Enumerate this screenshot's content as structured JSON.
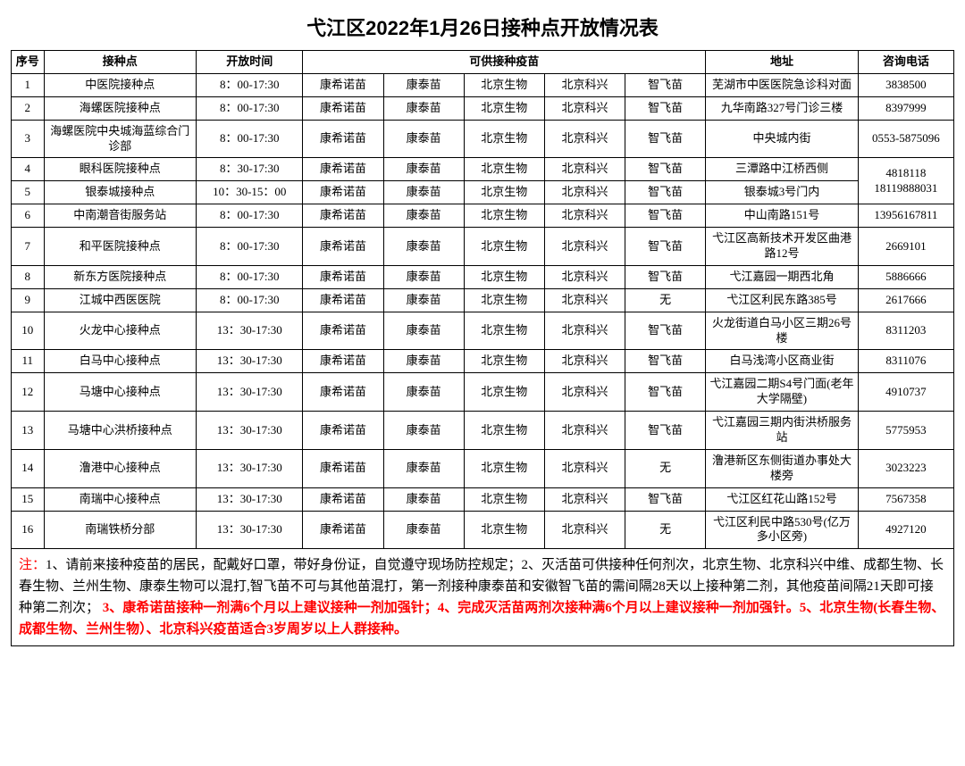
{
  "title": "弋江区2022年1月26日接种点开放情况表",
  "headers": {
    "seq": "序号",
    "name": "接种点",
    "time": "开放时间",
    "vaccine": "可供接种疫苗",
    "address": "地址",
    "tel": "咨询电话"
  },
  "rows": [
    {
      "seq": "1",
      "name": "中医院接种点",
      "time": "8：00-17:30",
      "v1": "康希诺苗",
      "v2": "康泰苗",
      "v3": "北京生物",
      "v4": "北京科兴",
      "v5": "智飞苗",
      "addr": "芜湖市中医医院急诊科对面",
      "tel": "3838500"
    },
    {
      "seq": "2",
      "name": "海螺医院接种点",
      "time": "8：00-17:30",
      "v1": "康希诺苗",
      "v2": "康泰苗",
      "v3": "北京生物",
      "v4": "北京科兴",
      "v5": "智飞苗",
      "addr": "九华南路327号门诊三楼",
      "tel": "8397999"
    },
    {
      "seq": "3",
      "name": "海螺医院中央城海蓝综合门诊部",
      "time": "8：00-17:30",
      "v1": "康希诺苗",
      "v2": "康泰苗",
      "v3": "北京生物",
      "v4": "北京科兴",
      "v5": "智飞苗",
      "addr": "中央城内街",
      "tel": "0553-5875096"
    },
    {
      "seq": "4",
      "name": "眼科医院接种点",
      "time": "8：30-17:30",
      "v1": "康希诺苗",
      "v2": "康泰苗",
      "v3": "北京生物",
      "v4": "北京科兴",
      "v5": "智飞苗",
      "addr": "三潭路中江桥西侧",
      "tel": "4818118\n18119888031",
      "rowspan_tel": 2
    },
    {
      "seq": "5",
      "name": "银泰城接种点",
      "time": "10：30-15：00",
      "v1": "康希诺苗",
      "v2": "康泰苗",
      "v3": "北京生物",
      "v4": "北京科兴",
      "v5": "智飞苗",
      "addr": "银泰城3号门内",
      "tel_merged": true
    },
    {
      "seq": "6",
      "name": "中南潮音街服务站",
      "time": "8：00-17:30",
      "v1": "康希诺苗",
      "v2": "康泰苗",
      "v3": "北京生物",
      "v4": "北京科兴",
      "v5": "智飞苗",
      "addr": "中山南路151号",
      "tel": "13956167811"
    },
    {
      "seq": "7",
      "name": "和平医院接种点",
      "time": "8：00-17:30",
      "v1": "康希诺苗",
      "v2": "康泰苗",
      "v3": "北京生物",
      "v4": "北京科兴",
      "v5": "智飞苗",
      "addr": "弋江区高新技术开发区曲港路12号",
      "tel": "2669101"
    },
    {
      "seq": "8",
      "name": "新东方医院接种点",
      "time": "8：00-17:30",
      "v1": "康希诺苗",
      "v2": "康泰苗",
      "v3": "北京生物",
      "v4": "北京科兴",
      "v5": "智飞苗",
      "addr": "弋江嘉园一期西北角",
      "tel": "5886666"
    },
    {
      "seq": "9",
      "name": "江城中西医医院",
      "time": "8：00-17:30",
      "v1": "康希诺苗",
      "v2": "康泰苗",
      "v3": "北京生物",
      "v4": "北京科兴",
      "v5": "无",
      "addr": "弋江区利民东路385号",
      "tel": "2617666"
    },
    {
      "seq": "10",
      "name": "火龙中心接种点",
      "time": "13：30-17:30",
      "v1": "康希诺苗",
      "v2": "康泰苗",
      "v3": "北京生物",
      "v4": "北京科兴",
      "v5": "智飞苗",
      "addr": "火龙街道白马小区三期26号楼",
      "tel": "8311203"
    },
    {
      "seq": "11",
      "name": "白马中心接种点",
      "time": "13：30-17:30",
      "v1": "康希诺苗",
      "v2": "康泰苗",
      "v3": "北京生物",
      "v4": "北京科兴",
      "v5": "智飞苗",
      "addr": "白马浅湾小区商业街",
      "tel": "8311076"
    },
    {
      "seq": "12",
      "name": "马塘中心接种点",
      "time": "13：30-17:30",
      "v1": "康希诺苗",
      "v2": "康泰苗",
      "v3": "北京生物",
      "v4": "北京科兴",
      "v5": "智飞苗",
      "addr": "弋江嘉园二期S4号门面(老年大学隔壁)",
      "tel": "4910737"
    },
    {
      "seq": "13",
      "name": "马塘中心洪桥接种点",
      "time": "13：30-17:30",
      "v1": "康希诺苗",
      "v2": "康泰苗",
      "v3": "北京生物",
      "v4": "北京科兴",
      "v5": "智飞苗",
      "addr": "弋江嘉园三期内街洪桥服务站",
      "tel": "5775953"
    },
    {
      "seq": "14",
      "name": "澛港中心接种点",
      "time": "13：30-17:30",
      "v1": "康希诺苗",
      "v2": "康泰苗",
      "v3": "北京生物",
      "v4": "北京科兴",
      "v5": "无",
      "addr": "澛港新区东侧街道办事处大楼旁",
      "tel": "3023223"
    },
    {
      "seq": "15",
      "name": "南瑞中心接种点",
      "time": "13：30-17:30",
      "v1": "康希诺苗",
      "v2": "康泰苗",
      "v3": "北京生物",
      "v4": "北京科兴",
      "v5": "智飞苗",
      "addr": "弋江区红花山路152号",
      "tel": "7567358"
    },
    {
      "seq": "16",
      "name": "南瑞铁桥分部",
      "time": "13：30-17:30",
      "v1": "康希诺苗",
      "v2": "康泰苗",
      "v3": "北京生物",
      "v4": "北京科兴",
      "v5": "无",
      "addr": "弋江区利民中路530号(亿万多小区旁)",
      "tel": "4927120"
    }
  ],
  "notes": {
    "label": "注：",
    "part1": "1、请前来接种疫苗的居民，配戴好口罩，带好身份证，自觉遵守现场防控规定；2、灭活苗可供接种任何剂次，北京生物、北京科兴中维、成都生物、长春生物、兰州生物、康泰生物可以混打,智飞苗不可与其他苗混打，第一剂接种康泰苗和安徽智飞苗的需间隔28天以上接种第二剂，其他疫苗间隔21天即可接种第二剂次；",
    "part2": " 3、康希诺苗接种一剂满6个月以上建议接种一剂加强针；4、完成灭活苗两剂次接种满6个月以上建议接种一剂加强针。5、北京生物(长春生物、成都生物、兰州生物）、北京科兴疫苗适合3岁周岁以上人群接种。"
  },
  "style": {
    "title_fontsize": 22,
    "cell_fontsize": 13,
    "notes_fontsize": 15,
    "border_color": "#000000",
    "text_color": "#000000",
    "note_highlight_color": "#ff0000",
    "background_color": "#ffffff"
  }
}
